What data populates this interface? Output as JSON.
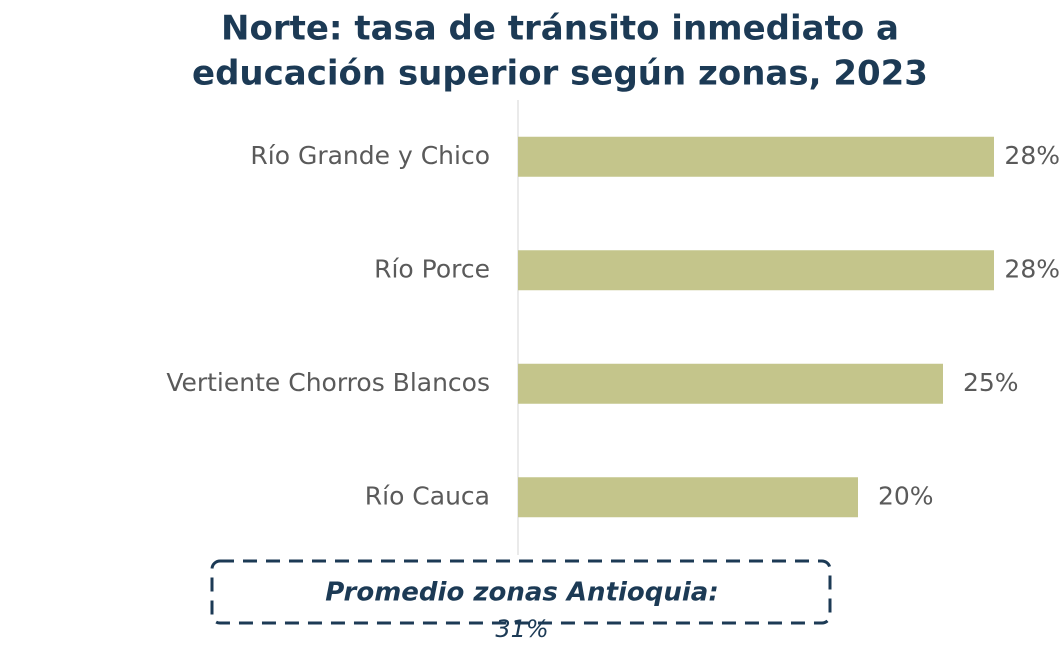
{
  "chart_data": {
    "type": "bar",
    "orientation": "horizontal",
    "title": [
      "Norte: tasa de tránsito inmediato a",
      "educación superior según zonas, 2023"
    ],
    "categories": [
      "Río Grande y Chico",
      "Río Porce",
      "Vertiente Chorros Blancos",
      "Río Cauca"
    ],
    "values": [
      28,
      28,
      25,
      20
    ],
    "value_labels": [
      "28%",
      "28%",
      "25%",
      "20%"
    ],
    "color": "#c4c58b",
    "xlim": [
      0,
      30
    ],
    "annotation": [
      "Promedio zonas Antioquia:",
      "31%"
    ]
  }
}
